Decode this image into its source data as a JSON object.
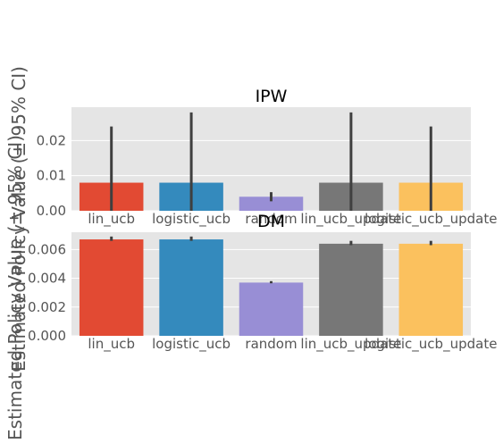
{
  "chart_data": [
    {
      "type": "bar",
      "title": "IPW",
      "ylabel": "Estimated Policy Value (± 95% CI)",
      "categories": [
        "lin_ucb",
        "logistic_ucb",
        "random",
        "lin_ucb_update",
        "logistic_ucb_update"
      ],
      "values": [
        0.008,
        0.008,
        0.004,
        0.008,
        0.008
      ],
      "ci_low": [
        0.0,
        0.0,
        0.0027,
        0.0,
        0.0
      ],
      "ci_high": [
        0.024,
        0.028,
        0.0053,
        0.028,
        0.024
      ],
      "colors": [
        "#E24A33",
        "#348ABD",
        "#988ED5",
        "#777777",
        "#FBC15E"
      ],
      "ylim": [
        0,
        0.0295
      ],
      "yticks": [
        0.0,
        0.01,
        0.02
      ],
      "ytick_labels": [
        "0.00",
        "0.01",
        "0.02"
      ],
      "grid": true
    },
    {
      "type": "bar",
      "title": "DM",
      "ylabel": "Estimated Policy Value (± 95% CI)",
      "categories": [
        "lin_ucb",
        "logistic_ucb",
        "random",
        "lin_ucb_update",
        "logistic_ucb_update"
      ],
      "values": [
        0.0067,
        0.0067,
        0.0037,
        0.0064,
        0.0064
      ],
      "ci_low": [
        0.0066,
        0.0066,
        0.00365,
        0.0063,
        0.0063
      ],
      "ci_high": [
        0.0069,
        0.0069,
        0.0038,
        0.0066,
        0.0066
      ],
      "colors": [
        "#E24A33",
        "#348ABD",
        "#988ED5",
        "#777777",
        "#FBC15E"
      ],
      "ylim": [
        0,
        0.0072
      ],
      "yticks": [
        0.0,
        0.002,
        0.004,
        0.006
      ],
      "ytick_labels": [
        "0.000",
        "0.002",
        "0.004",
        "0.006"
      ],
      "grid": true
    }
  ]
}
